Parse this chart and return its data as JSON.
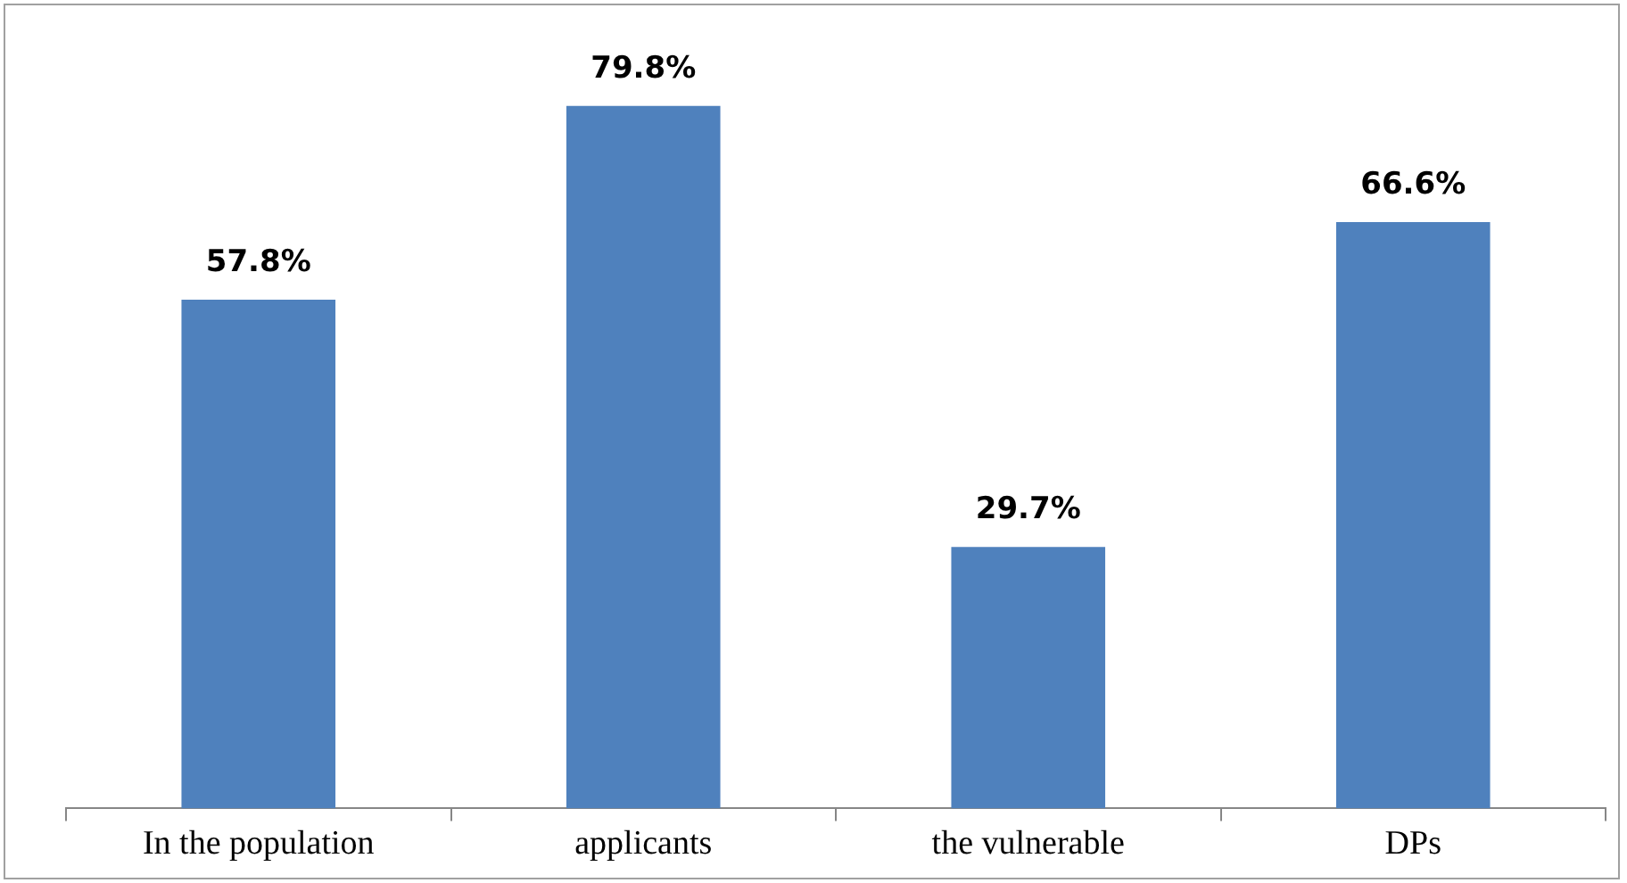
{
  "chart_data": {
    "type": "bar",
    "categories": [
      "In the population",
      "applicants",
      "the vulnerable",
      "DPs"
    ],
    "values": [
      57.8,
      79.8,
      29.7,
      66.6
    ],
    "value_labels": [
      "57.8%",
      "79.8%",
      "29.7%",
      "66.6%"
    ],
    "color": "#4f81bd",
    "grid": false,
    "legend": false
  }
}
